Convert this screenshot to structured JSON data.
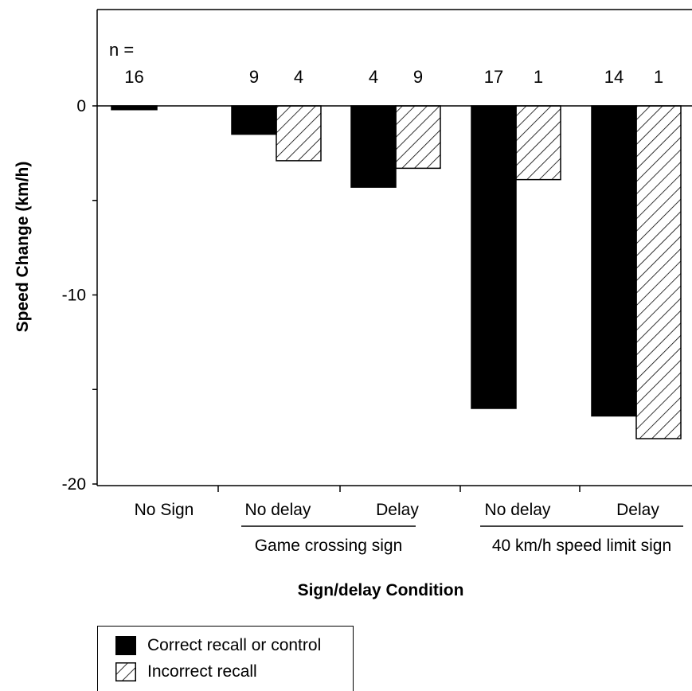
{
  "chart_data": {
    "type": "bar",
    "title": "",
    "xlabel": "Sign/delay Condition",
    "ylabel": "Speed Change (km/h)",
    "ylim": [
      -20,
      0
    ],
    "yticks": [
      0,
      -10,
      -20
    ],
    "n_prefix": "n =",
    "categories": [
      "No Sign",
      "No delay",
      "Delay",
      "No delay",
      "Delay"
    ],
    "groups": [
      {
        "label": "",
        "categories": [
          0
        ]
      },
      {
        "label": "Game crossing sign",
        "categories": [
          1,
          2
        ]
      },
      {
        "label": "40 km/h speed limit sign",
        "categories": [
          3,
          4
        ]
      }
    ],
    "series": [
      {
        "name": "Correct recall or control",
        "fill": "#000000",
        "values": [
          -0.2,
          -1.5,
          -4.3,
          -16.0,
          -16.4
        ],
        "n": [
          "16",
          "9",
          "4",
          "17",
          "14"
        ]
      },
      {
        "name": "Incorrect recall",
        "fill": "hatch",
        "values": [
          null,
          -2.9,
          -3.3,
          -3.9,
          -17.6
        ],
        "n": [
          null,
          "4",
          "9",
          "1",
          "1"
        ]
      }
    ],
    "legend_position": "bottom-left",
    "grid": false
  },
  "legend": {
    "items": [
      {
        "label": "Correct recall or control",
        "style": "solid"
      },
      {
        "label": "Incorrect recall",
        "style": "hatch"
      }
    ]
  }
}
